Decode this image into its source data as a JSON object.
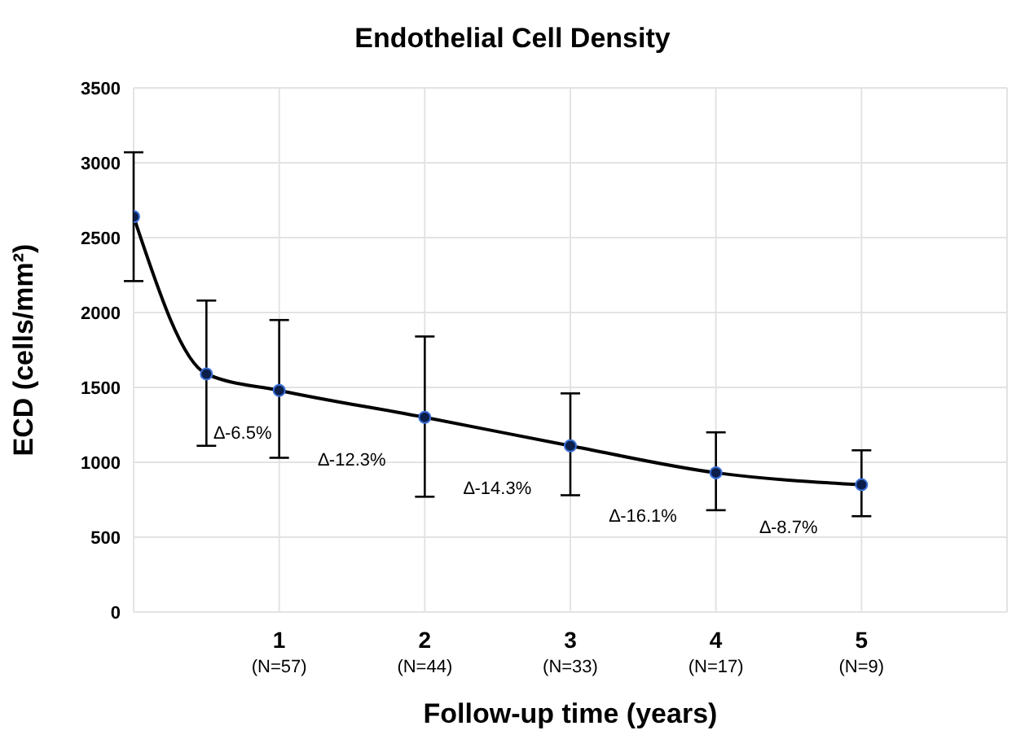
{
  "chart_data": {
    "type": "line",
    "title": "Endothelial Cell Density",
    "xlabel": "Follow-up time (years)",
    "ylabel": "ECD (cells/mm²)",
    "categories": [
      null,
      null,
      "1\n(N=57)",
      null,
      "2\n(N=44)",
      null,
      "3\n(N=33)",
      null,
      "4\n(N=17)",
      null,
      "5\n(N=9)",
      null,
      null
    ],
    "series": [
      {
        "color": "#000000",
        "values": [
          2640,
          1590,
          1480,
          null,
          1300,
          null,
          1110,
          null,
          930,
          null,
          850,
          null,
          null
        ],
        "errors": [
          [
            2210,
            3070
          ],
          [
            1110,
            2080
          ],
          [
            1030,
            1950
          ],
          null,
          [
            770,
            1840
          ],
          null,
          [
            780,
            1460
          ],
          null,
          [
            680,
            1200
          ],
          null,
          [
            640,
            1080
          ],
          null,
          null
        ]
      }
    ],
    "ylim": [
      0,
      3500
    ],
    "yticks": [
      0,
      500,
      1000,
      1500,
      2000,
      2500,
      3000,
      3500
    ],
    "grid": true,
    "legend": false,
    "marker": "circle",
    "line_style": "solid",
    "annotations": [
      "∆-6.5%",
      "∆-12.3%",
      "∆-14.3%",
      "∆-16.1%",
      "∆-8.7%"
    ]
  }
}
